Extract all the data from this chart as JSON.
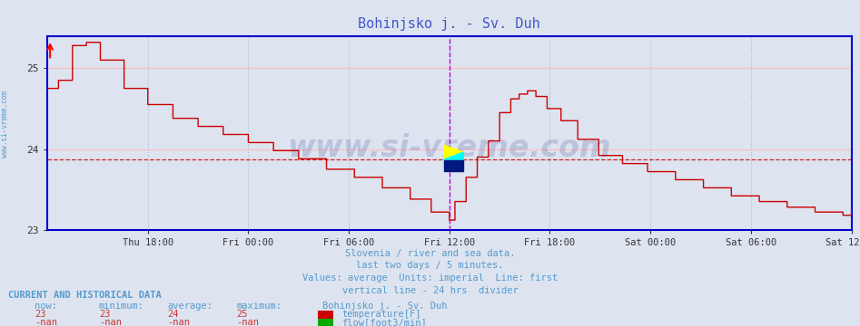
{
  "title": "Bohinjsko j. - Sv. Duh",
  "title_color": "#4455cc",
  "bg_color": "#dde4f0",
  "plot_bg_color": "#dde4f0",
  "grid_color_h": "#ffbbbb",
  "grid_color_v": "#aabbdd",
  "temp_line_color": "#cc0000",
  "avg_line_color": "#cc0000",
  "avg_line_value": 23.87,
  "ylim": [
    23.0,
    25.4
  ],
  "yticks": [
    23,
    24,
    25
  ],
  "x_labels": [
    "Thu 18:00",
    "Fri 00:00",
    "Fri 06:00",
    "Fri 12:00",
    "Fri 18:00",
    "Sat 00:00",
    "Sat 06:00",
    "Sat 12:00"
  ],
  "x_tick_positions": [
    72,
    144,
    216,
    288,
    360,
    432,
    504,
    576
  ],
  "total_points": 577,
  "vertical_line_24h": 288,
  "vertical_line_end": 576,
  "footer_lines": [
    "Slovenia / river and sea data.",
    "last two days / 5 minutes.",
    "Values: average  Units: imperial  Line: first",
    "vertical line - 24 hrs  divider"
  ],
  "footer_color": "#5599cc",
  "table_header": "CURRENT AND HISTORICAL DATA",
  "table_color": "#5599cc",
  "table_columns": [
    "now:",
    "minimum:",
    "average:",
    "maximum:",
    "Bohinjsko j. - Sv. Duh"
  ],
  "table_row1_vals": [
    "23",
    "23",
    "24",
    "25"
  ],
  "table_row1_label": "temperature[F]",
  "table_row2_vals": [
    "-nan",
    "-nan",
    "-nan",
    "-nan"
  ],
  "table_row2_label": "flow[foot3/min]",
  "temp_color_box": "#cc0000",
  "flow_color_box": "#00aa00",
  "watermark": "www.si-vreme.com",
  "watermark_color": "#223388",
  "watermark_alpha": 0.18,
  "sidebar_text": "www.si-vreme.com",
  "sidebar_color": "#5599cc",
  "spine_color": "#0000cc",
  "waypoints_i": [
    0,
    8,
    18,
    28,
    38,
    55,
    72,
    90,
    108,
    126,
    144,
    162,
    180,
    200,
    220,
    240,
    260,
    275,
    288,
    292,
    300,
    308,
    316,
    324,
    332,
    338,
    344,
    350,
    358,
    368,
    380,
    395,
    412,
    430,
    450,
    470,
    490,
    510,
    530,
    550,
    570,
    576
  ],
  "waypoints_v": [
    24.75,
    24.85,
    25.28,
    25.32,
    25.1,
    24.75,
    24.55,
    24.38,
    24.28,
    24.18,
    24.08,
    23.98,
    23.88,
    23.75,
    23.65,
    23.52,
    23.38,
    23.22,
    23.12,
    23.35,
    23.65,
    23.9,
    24.1,
    24.45,
    24.62,
    24.68,
    24.72,
    24.65,
    24.5,
    24.35,
    24.12,
    23.92,
    23.82,
    23.72,
    23.62,
    23.52,
    23.42,
    23.35,
    23.28,
    23.22,
    23.18,
    23.25
  ]
}
